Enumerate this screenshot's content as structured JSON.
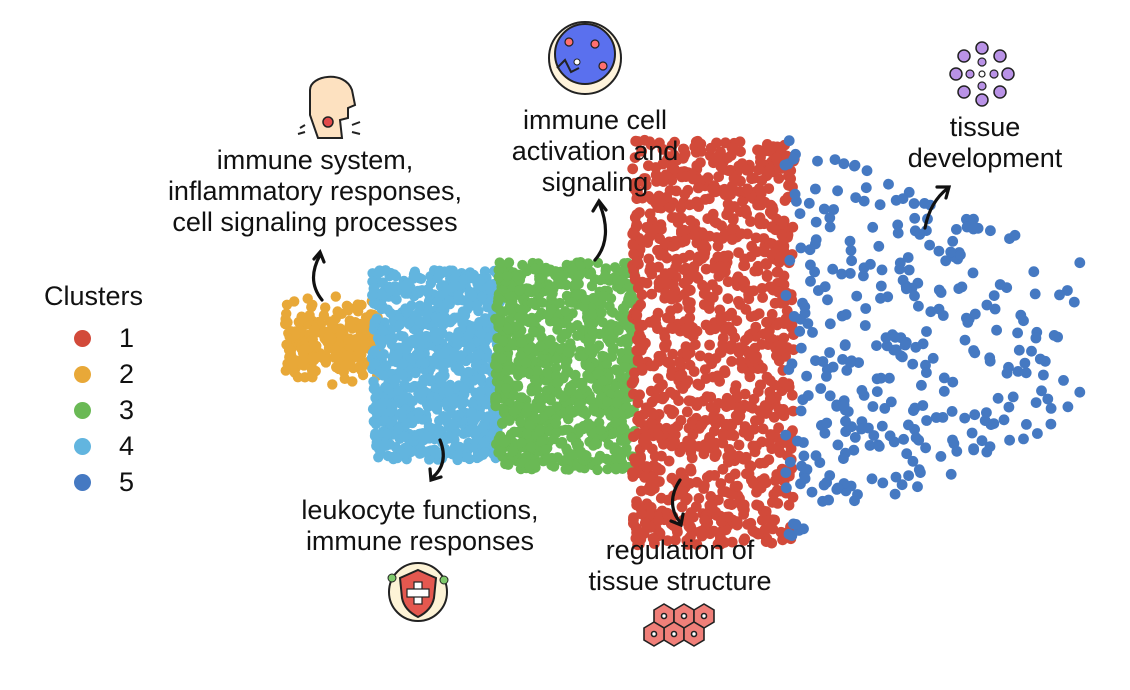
{
  "legend": {
    "title": "Clusters",
    "items": [
      {
        "label": "1",
        "color": "#d24a3a"
      },
      {
        "label": "2",
        "color": "#e8a838"
      },
      {
        "label": "3",
        "color": "#6ab955"
      },
      {
        "label": "4",
        "color": "#62b5df"
      },
      {
        "label": "5",
        "color": "#4579c2"
      }
    ]
  },
  "annotations": {
    "cluster2": [
      "immune system,",
      "inflammatory responses,",
      "cell signaling processes"
    ],
    "cluster4": [
      "leukocyte functions,",
      "immune responses"
    ],
    "cluster3": [
      "immune cell",
      "activation and",
      "signaling"
    ],
    "cluster1": [
      "regulation of",
      "tissue structure"
    ],
    "cluster5": [
      "tissue",
      "development"
    ]
  },
  "icons": {
    "cluster2": "throat-inflammation-icon",
    "cluster4": "immune-shield-icon",
    "cluster3": "cell-activation-icon",
    "cluster1": "tissue-cells-icon",
    "cluster5": "tissue-development-icon"
  }
}
